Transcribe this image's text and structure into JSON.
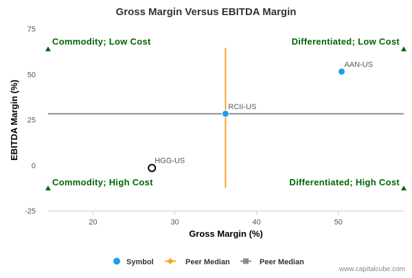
{
  "chart_data": {
    "type": "scatter",
    "title": "Gross Margin Versus EBITDA Margin",
    "xlabel": "Gross Margin (%)",
    "ylabel": "EBITDA Margin (%)",
    "xlim": [
      14.5,
      58
    ],
    "ylim": [
      -25,
      75
    ],
    "x_ticks": [
      20,
      30,
      40,
      50
    ],
    "y_ticks": [
      75,
      50,
      25,
      0,
      -25
    ],
    "grid": false,
    "points": [
      {
        "label": "AAN-US",
        "x": 50.4,
        "y": 51.5,
        "style": "filled"
      },
      {
        "label": "RCII-US",
        "x": 36.2,
        "y": 28.3,
        "style": "filled"
      },
      {
        "label": "HGG-US",
        "x": 27.2,
        "y": -1.5,
        "style": "hollow"
      }
    ],
    "peer_median": {
      "x": 36.2,
      "y": 28.3,
      "x_span": [
        -12.5,
        64.5
      ],
      "y_span": [
        14.5,
        58
      ]
    },
    "quadrants": [
      {
        "label": "Commodity; Low Cost",
        "position": "top-left",
        "x": 14.5,
        "y": 64
      },
      {
        "label": "Differentiated; Low Cost",
        "position": "top-right",
        "x": 58,
        "y": 64
      },
      {
        "label": "Commodity; High Cost",
        "position": "bottom-left",
        "x": 14.5,
        "y": -12.5
      },
      {
        "label": "Differentiated; High Cost",
        "position": "bottom-right",
        "x": 58,
        "y": -12.5
      }
    ],
    "legend": {
      "position": "bottom-center",
      "items": [
        {
          "label": "Symbol",
          "marker": "circle",
          "color": "#1aa1e8"
        },
        {
          "label": "Peer Median",
          "marker": "diamond-line",
          "color": "#f5a623"
        },
        {
          "label": "Peer Median",
          "marker": "square-line",
          "color": "#8c8c8c"
        }
      ]
    },
    "colors": {
      "symbol": "#1aa1e8",
      "vline": "#f5a623",
      "hline": "#8c8c8c",
      "quad": "#006400",
      "axis": "#c0d0e0"
    }
  },
  "credit": "www.capitalcube.com"
}
